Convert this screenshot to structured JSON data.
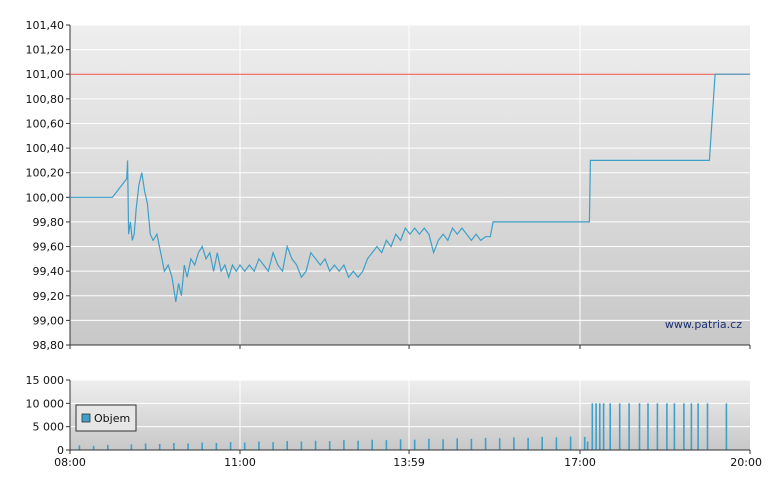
{
  "chart_data": [
    {
      "type": "line",
      "title": "",
      "xlabel": "",
      "ylabel": "",
      "ylim": [
        98.8,
        101.4
      ],
      "y_ticks": [
        "101,40",
        "101,20",
        "101,00",
        "100,80",
        "100,60",
        "100,40",
        "100,20",
        "100,00",
        "99,80",
        "99,60",
        "99,40",
        "99,20",
        "99,00",
        "98,80"
      ],
      "reference_line": {
        "value": 101.0,
        "color": "#e8504a"
      },
      "series": [
        {
          "color": "#3ea0c8",
          "points": [
            [
              "08:00",
              100.0
            ],
            [
              "08:45",
              100.0
            ],
            [
              "09:00",
              100.15
            ],
            [
              "09:01",
              100.3
            ],
            [
              "09:02",
              99.7
            ],
            [
              "09:04",
              99.8
            ],
            [
              "09:06",
              99.65
            ],
            [
              "09:08",
              99.7
            ],
            [
              "09:10",
              99.9
            ],
            [
              "09:13",
              100.1
            ],
            [
              "09:16",
              100.2
            ],
            [
              "09:19",
              100.05
            ],
            [
              "09:22",
              99.95
            ],
            [
              "09:25",
              99.7
            ],
            [
              "09:28",
              99.65
            ],
            [
              "09:32",
              99.7
            ],
            [
              "09:36",
              99.55
            ],
            [
              "09:40",
              99.4
            ],
            [
              "09:44",
              99.45
            ],
            [
              "09:48",
              99.35
            ],
            [
              "09:52",
              99.15
            ],
            [
              "09:55",
              99.3
            ],
            [
              "09:58",
              99.2
            ],
            [
              "10:01",
              99.45
            ],
            [
              "10:04",
              99.35
            ],
            [
              "10:08",
              99.5
            ],
            [
              "10:12",
              99.45
            ],
            [
              "10:16",
              99.55
            ],
            [
              "10:20",
              99.6
            ],
            [
              "10:24",
              99.5
            ],
            [
              "10:28",
              99.55
            ],
            [
              "10:32",
              99.4
            ],
            [
              "10:36",
              99.55
            ],
            [
              "10:40",
              99.4
            ],
            [
              "10:44",
              99.45
            ],
            [
              "10:48",
              99.35
            ],
            [
              "10:52",
              99.45
            ],
            [
              "10:56",
              99.4
            ],
            [
              "11:00",
              99.45
            ],
            [
              "11:05",
              99.4
            ],
            [
              "11:10",
              99.45
            ],
            [
              "11:15",
              99.4
            ],
            [
              "11:20",
              99.5
            ],
            [
              "11:25",
              99.45
            ],
            [
              "11:30",
              99.4
            ],
            [
              "11:35",
              99.55
            ],
            [
              "11:40",
              99.45
            ],
            [
              "11:45",
              99.4
            ],
            [
              "11:50",
              99.6
            ],
            [
              "11:55",
              99.5
            ],
            [
              "12:00",
              99.45
            ],
            [
              "12:05",
              99.35
            ],
            [
              "12:10",
              99.4
            ],
            [
              "12:15",
              99.55
            ],
            [
              "12:20",
              99.5
            ],
            [
              "12:25",
              99.45
            ],
            [
              "12:30",
              99.5
            ],
            [
              "12:35",
              99.4
            ],
            [
              "12:40",
              99.45
            ],
            [
              "12:45",
              99.4
            ],
            [
              "12:50",
              99.45
            ],
            [
              "12:55",
              99.35
            ],
            [
              "13:00",
              99.4
            ],
            [
              "13:05",
              99.35
            ],
            [
              "13:10",
              99.4
            ],
            [
              "13:15",
              99.5
            ],
            [
              "13:20",
              99.55
            ],
            [
              "13:25",
              99.6
            ],
            [
              "13:30",
              99.55
            ],
            [
              "13:35",
              99.65
            ],
            [
              "13:40",
              99.6
            ],
            [
              "13:45",
              99.7
            ],
            [
              "13:50",
              99.65
            ],
            [
              "13:55",
              99.75
            ],
            [
              "14:00",
              99.7
            ],
            [
              "14:05",
              99.75
            ],
            [
              "14:10",
              99.7
            ],
            [
              "14:15",
              99.75
            ],
            [
              "14:20",
              99.7
            ],
            [
              "14:25",
              99.55
            ],
            [
              "14:30",
              99.65
            ],
            [
              "14:35",
              99.7
            ],
            [
              "14:40",
              99.65
            ],
            [
              "14:45",
              99.75
            ],
            [
              "14:50",
              99.7
            ],
            [
              "14:55",
              99.75
            ],
            [
              "15:00",
              99.7
            ],
            [
              "15:05",
              99.65
            ],
            [
              "15:10",
              99.7
            ],
            [
              "15:15",
              99.65
            ],
            [
              "15:20",
              99.68
            ],
            [
              "15:25",
              99.68
            ],
            [
              "15:28",
              99.8
            ],
            [
              "17:10",
              99.8
            ],
            [
              "17:11",
              100.3
            ],
            [
              "19:17",
              100.3
            ],
            [
              "19:23",
              101.0
            ],
            [
              "20:00",
              101.0
            ]
          ]
        }
      ]
    },
    {
      "type": "bar",
      "title": "",
      "xlabel": "",
      "ylabel": "",
      "ylim": [
        0,
        15000
      ],
      "y_ticks": [
        "15 000",
        "10 000",
        "5 000",
        "0"
      ],
      "legend": {
        "label": "Objem",
        "placement": "left"
      },
      "x_ticks": [
        "08:00",
        "11:00",
        "13:59",
        "17:00",
        "20:00"
      ],
      "color": "#3ea0c8",
      "bars": [
        [
          "08:10",
          1000
        ],
        [
          "08:25",
          900
        ],
        [
          "08:40",
          1100
        ],
        [
          "09:05",
          1200
        ],
        [
          "09:20",
          1400
        ],
        [
          "09:35",
          1300
        ],
        [
          "09:50",
          1500
        ],
        [
          "10:05",
          1400
        ],
        [
          "10:20",
          1600
        ],
        [
          "10:35",
          1500
        ],
        [
          "10:50",
          1700
        ],
        [
          "11:05",
          1600
        ],
        [
          "11:20",
          1800
        ],
        [
          "11:35",
          1700
        ],
        [
          "11:50",
          1900
        ],
        [
          "12:05",
          1800
        ],
        [
          "12:20",
          2000
        ],
        [
          "12:35",
          1900
        ],
        [
          "12:50",
          2100
        ],
        [
          "13:05",
          2000
        ],
        [
          "13:20",
          2200
        ],
        [
          "13:35",
          2100
        ],
        [
          "13:50",
          2300
        ],
        [
          "14:05",
          2200
        ],
        [
          "14:20",
          2400
        ],
        [
          "14:35",
          2300
        ],
        [
          "14:50",
          2500
        ],
        [
          "15:05",
          2400
        ],
        [
          "15:20",
          2600
        ],
        [
          "15:35",
          2500
        ],
        [
          "15:50",
          2700
        ],
        [
          "16:05",
          2600
        ],
        [
          "16:20",
          2800
        ],
        [
          "16:35",
          2700
        ],
        [
          "16:50",
          2900
        ],
        [
          "17:05",
          2800
        ],
        [
          "17:08",
          1800
        ],
        [
          "17:13",
          10000
        ],
        [
          "17:17",
          10000
        ],
        [
          "17:21",
          10000
        ],
        [
          "17:25",
          10000
        ],
        [
          "17:32",
          10000
        ],
        [
          "17:42",
          10000
        ],
        [
          "17:52",
          10000
        ],
        [
          "18:03",
          10000
        ],
        [
          "18:12",
          10000
        ],
        [
          "18:22",
          10000
        ],
        [
          "18:32",
          10000
        ],
        [
          "18:40",
          10000
        ],
        [
          "18:50",
          10000
        ],
        [
          "18:58",
          10000
        ],
        [
          "19:05",
          10000
        ],
        [
          "19:15",
          10000
        ],
        [
          "19:35",
          10000
        ]
      ]
    }
  ],
  "watermark": "www.patria.cz"
}
